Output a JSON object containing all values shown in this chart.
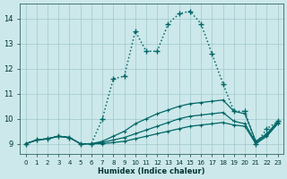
{
  "xlabel": "Humidex (Indice chaleur)",
  "bg_color": "#cce8ea",
  "grid_color": "#a0c8cc",
  "line_color": "#006666",
  "xlim": [
    -0.5,
    23.5
  ],
  "ylim": [
    8.6,
    14.6
  ],
  "xticks": [
    0,
    1,
    2,
    3,
    4,
    5,
    6,
    7,
    8,
    9,
    10,
    11,
    12,
    13,
    14,
    15,
    16,
    17,
    18,
    19,
    20,
    21,
    22,
    23
  ],
  "yticks": [
    9,
    10,
    11,
    12,
    13,
    14
  ],
  "line1_x": [
    0,
    1,
    2,
    3,
    4,
    5,
    6,
    7,
    8,
    9,
    10,
    11,
    12,
    13,
    14,
    15,
    16,
    17,
    18,
    19,
    20,
    21,
    22,
    23
  ],
  "line1_y": [
    9.0,
    9.15,
    9.2,
    9.3,
    9.25,
    9.0,
    9.0,
    9.0,
    9.05,
    9.1,
    9.2,
    9.3,
    9.4,
    9.5,
    9.6,
    9.7,
    9.75,
    9.8,
    9.85,
    9.75,
    9.7,
    9.0,
    9.3,
    9.8
  ],
  "line2_x": [
    0,
    1,
    2,
    3,
    4,
    5,
    6,
    7,
    8,
    9,
    10,
    11,
    12,
    13,
    14,
    15,
    16,
    17,
    18,
    19,
    20,
    21,
    22,
    23
  ],
  "line2_y": [
    9.0,
    9.15,
    9.2,
    9.3,
    9.25,
    9.0,
    9.0,
    9.05,
    9.15,
    9.25,
    9.4,
    9.55,
    9.7,
    9.85,
    10.0,
    10.1,
    10.15,
    10.2,
    10.25,
    9.9,
    9.8,
    9.05,
    9.35,
    9.85
  ],
  "line3_x": [
    0,
    1,
    2,
    3,
    4,
    5,
    6,
    7,
    8,
    9,
    10,
    11,
    12,
    13,
    14,
    15,
    16,
    17,
    18,
    19,
    20,
    21,
    22,
    23
  ],
  "line3_y": [
    9.0,
    9.15,
    9.2,
    9.3,
    9.25,
    9.0,
    9.0,
    9.1,
    9.3,
    9.5,
    9.8,
    10.0,
    10.2,
    10.35,
    10.5,
    10.6,
    10.65,
    10.7,
    10.75,
    10.3,
    10.2,
    9.1,
    9.4,
    9.9
  ],
  "line4_x": [
    0,
    1,
    2,
    3,
    4,
    5,
    6,
    7,
    8,
    9,
    10,
    11,
    12,
    13,
    14,
    15,
    16,
    17,
    18,
    19,
    20,
    21,
    22,
    23
  ],
  "line4_y": [
    9.0,
    9.15,
    9.2,
    9.3,
    9.25,
    9.0,
    9.0,
    10.0,
    11.6,
    11.7,
    13.5,
    12.7,
    12.7,
    13.8,
    14.2,
    14.3,
    13.8,
    12.6,
    11.4,
    10.3,
    10.3,
    9.0,
    9.6,
    9.9
  ]
}
